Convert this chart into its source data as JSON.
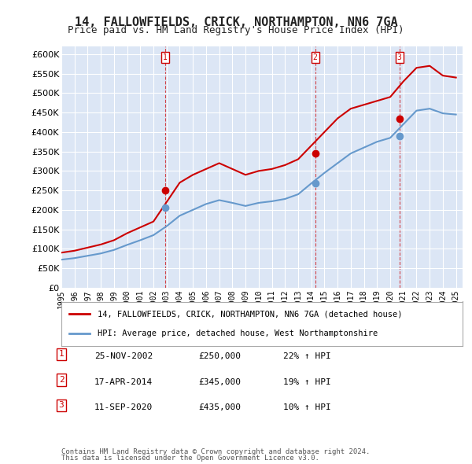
{
  "title": "14, FALLOWFIELDS, CRICK, NORTHAMPTON, NN6 7GA",
  "subtitle": "Price paid vs. HM Land Registry's House Price Index (HPI)",
  "background_color": "#dce6f5",
  "plot_bg_color": "#dce6f5",
  "ylabel_color": "#333333",
  "ylim": [
    0,
    620000
  ],
  "yticks": [
    0,
    50000,
    100000,
    150000,
    200000,
    250000,
    300000,
    350000,
    400000,
    450000,
    500000,
    550000,
    600000
  ],
  "legend_label_red": "14, FALLOWFIELDS, CRICK, NORTHAMPTON, NN6 7GA (detached house)",
  "legend_label_blue": "HPI: Average price, detached house, West Northamptonshire",
  "transactions": [
    {
      "num": 1,
      "date": "25-NOV-2002",
      "price": 250000,
      "pct": "22%",
      "dir": "↑",
      "ref": "HPI"
    },
    {
      "num": 2,
      "date": "17-APR-2014",
      "price": 345000,
      "pct": "19%",
      "dir": "↑",
      "ref": "HPI"
    },
    {
      "num": 3,
      "date": "11-SEP-2020",
      "price": 435000,
      "pct": "10%",
      "dir": "↑",
      "ref": "HPI"
    }
  ],
  "footer1": "Contains HM Land Registry data © Crown copyright and database right 2024.",
  "footer2": "This data is licensed under the Open Government Licence v3.0.",
  "red_line_color": "#cc0000",
  "blue_line_color": "#6699cc",
  "vline_color": "#cc0000",
  "marker_color_red": "#cc0000",
  "marker_color_blue": "#6699cc",
  "hpi_years": [
    1995,
    1996,
    1997,
    1998,
    1999,
    2000,
    2001,
    2002,
    2003,
    2004,
    2005,
    2006,
    2007,
    2008,
    2009,
    2010,
    2011,
    2012,
    2013,
    2014,
    2015,
    2016,
    2017,
    2018,
    2019,
    2020,
    2021,
    2022,
    2023,
    2024,
    2025
  ],
  "hpi_values": [
    72000,
    76000,
    82000,
    88000,
    97000,
    110000,
    122000,
    135000,
    158000,
    185000,
    200000,
    215000,
    225000,
    218000,
    210000,
    218000,
    222000,
    228000,
    240000,
    268000,
    295000,
    320000,
    345000,
    360000,
    375000,
    385000,
    420000,
    455000,
    460000,
    448000,
    445000
  ],
  "red_years": [
    1995,
    1996,
    1997,
    1998,
    1999,
    2000,
    2001,
    2002,
    2003,
    2004,
    2005,
    2006,
    2007,
    2008,
    2009,
    2010,
    2011,
    2012,
    2013,
    2014,
    2015,
    2016,
    2017,
    2018,
    2019,
    2020,
    2021,
    2022,
    2023,
    2024,
    2025
  ],
  "red_values": [
    90000,
    95000,
    103000,
    111000,
    122000,
    140000,
    155000,
    170000,
    220000,
    270000,
    290000,
    305000,
    320000,
    305000,
    290000,
    300000,
    305000,
    315000,
    330000,
    365000,
    400000,
    435000,
    460000,
    470000,
    480000,
    490000,
    530000,
    565000,
    570000,
    545000,
    540000
  ],
  "transaction_years": [
    2002.9,
    2014.3,
    2020.7
  ],
  "transaction_prices_red": [
    250000,
    345000,
    435000
  ],
  "transaction_prices_blue": [
    205000,
    268000,
    390000
  ]
}
